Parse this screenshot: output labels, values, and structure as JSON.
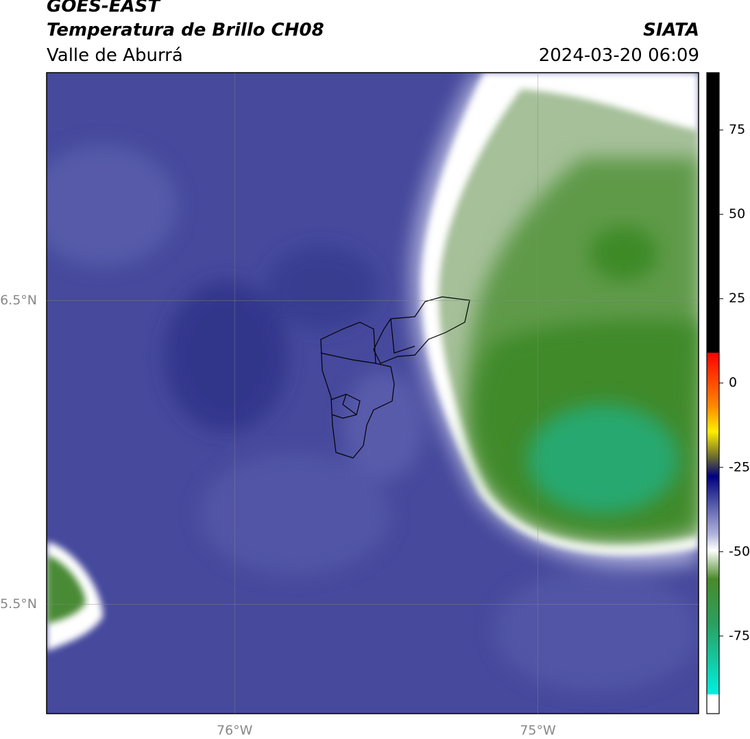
{
  "header": {
    "title": "GOES-EAST",
    "subtitle": "Temperatura de Brillo CH08",
    "region": "Valle de Aburrá",
    "agency": "SIATA",
    "datetime": "2024-03-20 06:09"
  },
  "map": {
    "xlim": [
      -76.62,
      -74.47
    ],
    "ylim": [
      5.14,
      7.25
    ],
    "lon_ticks": [
      {
        "value": -76,
        "label": "76°W"
      },
      {
        "value": -75,
        "label": "75°W"
      }
    ],
    "lat_ticks": [
      {
        "value": 6.5,
        "label": "6.5°N"
      },
      {
        "value": 5.5,
        "label": "5.5°N"
      }
    ]
  },
  "colorbar": {
    "lim": [
      -98,
      92
    ],
    "ticks": [
      75,
      50,
      25,
      0,
      -25,
      -50,
      -75
    ]
  }
}
